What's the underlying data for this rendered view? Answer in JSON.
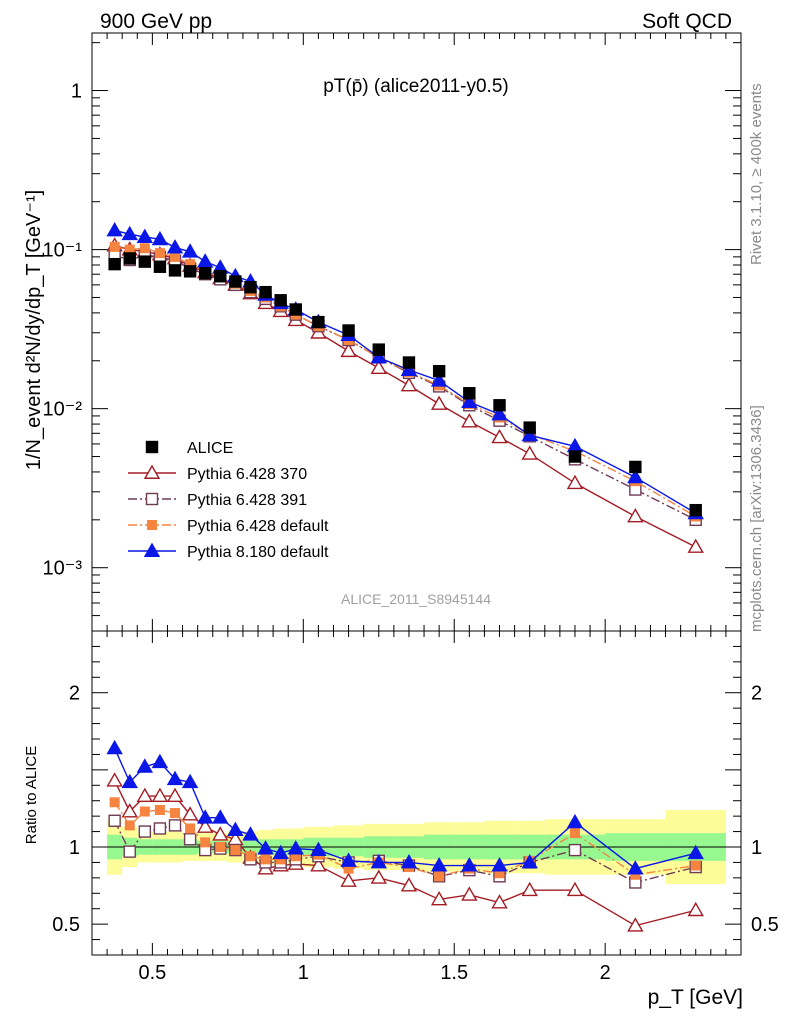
{
  "header": {
    "left": "900 GeV pp",
    "right": "Soft QCD"
  },
  "side": {
    "rivet": "Rivet 3.1.10, ≥ 400k events",
    "mcplots": "mcplots.cern.ch [arXiv:1306.3436]"
  },
  "chart_data": [
    {
      "type": "scatter",
      "title": "pT(p̄) (alice2011-y0.5)",
      "ylabel": "1/N_event d²N/dy/dp_T [GeV⁻¹]",
      "yscale": "log",
      "ylim": [
        0.0004,
        2.3
      ],
      "xlim": [
        0.3,
        2.45
      ],
      "yticks": [
        {
          "v": 1,
          "label": "1"
        },
        {
          "v": 0.1,
          "label": "10⁻¹"
        },
        {
          "v": 0.01,
          "label": "10⁻²"
        },
        {
          "v": 0.001,
          "label": "10⁻³"
        }
      ],
      "watermark": "ALICE_2011_S8945144",
      "legend_position": "lower-left",
      "x": [
        0.375,
        0.425,
        0.475,
        0.525,
        0.575,
        0.625,
        0.675,
        0.725,
        0.775,
        0.825,
        0.875,
        0.925,
        0.975,
        1.05,
        1.15,
        1.25,
        1.35,
        1.45,
        1.55,
        1.65,
        1.75,
        1.9,
        2.1,
        2.3
      ],
      "series": [
        {
          "name": "ALICE",
          "values": [
            0.081,
            0.088,
            0.084,
            0.078,
            0.074,
            0.073,
            0.071,
            0.068,
            0.063,
            0.058,
            0.054,
            0.048,
            0.042,
            0.035,
            0.031,
            0.0235,
            0.0195,
            0.0172,
            0.0125,
            0.0105,
            0.0076,
            0.005,
            0.0043,
            0.0023
          ]
        },
        {
          "name": "Pythia 6.428 370",
          "values": [
            0.106,
            0.1,
            0.097,
            0.093,
            0.088,
            0.079,
            0.072,
            0.066,
            0.06,
            0.053,
            0.046,
            0.041,
            0.036,
            0.03,
            0.023,
            0.018,
            0.014,
            0.0107,
            0.0083,
            0.0066,
            0.0052,
            0.0034,
            0.0021,
            0.00135
          ]
        },
        {
          "name": "Pythia 6.428 391",
          "values": [
            0.092,
            0.086,
            0.092,
            0.09,
            0.085,
            0.076,
            0.07,
            0.065,
            0.06,
            0.054,
            0.049,
            0.044,
            0.039,
            0.033,
            0.027,
            0.021,
            0.0168,
            0.0138,
            0.0105,
            0.0084,
            0.0067,
            0.0048,
            0.0031,
            0.002
          ]
        },
        {
          "name": "Pythia 6.428 default",
          "values": [
            0.104,
            0.1,
            0.102,
            0.095,
            0.09,
            0.081,
            0.073,
            0.067,
            0.061,
            0.055,
            0.05,
            0.044,
            0.039,
            0.033,
            0.027,
            0.021,
            0.017,
            0.014,
            0.0107,
            0.0088,
            0.0069,
            0.0054,
            0.0035,
            0.0021
          ]
        },
        {
          "name": "Pythia 8.180 default",
          "values": [
            0.132,
            0.125,
            0.12,
            0.116,
            0.103,
            0.097,
            0.084,
            0.077,
            0.068,
            0.063,
            0.052,
            0.046,
            0.042,
            0.035,
            0.029,
            0.021,
            0.0175,
            0.015,
            0.011,
            0.0092,
            0.0068,
            0.0058,
            0.0037,
            0.0022
          ]
        }
      ]
    },
    {
      "type": "scatter",
      "ylabel": "Ratio to ALICE",
      "xlabel": "p_T [GeV]",
      "ylim": [
        0.3,
        2.4
      ],
      "xlim": [
        0.3,
        2.45
      ],
      "xticks": [
        {
          "v": 0.5,
          "label": "0.5"
        },
        {
          "v": 1,
          "label": "1"
        },
        {
          "v": 1.5,
          "label": "1.5"
        },
        {
          "v": 2,
          "label": "2"
        }
      ],
      "yticks": [
        {
          "v": 0.5,
          "label": "0.5"
        },
        {
          "v": 1,
          "label": "1"
        },
        {
          "v": 2,
          "label": "2"
        }
      ],
      "bins": [
        [
          0.35,
          0.4
        ],
        [
          0.4,
          0.45
        ],
        [
          0.45,
          0.5
        ],
        [
          0.5,
          0.55
        ],
        [
          0.55,
          0.6
        ],
        [
          0.6,
          0.65
        ],
        [
          0.65,
          0.7
        ],
        [
          0.7,
          0.75
        ],
        [
          0.75,
          0.8
        ],
        [
          0.8,
          0.85
        ],
        [
          0.85,
          0.9
        ],
        [
          0.9,
          0.95
        ],
        [
          0.95,
          1.0
        ],
        [
          1.0,
          1.1
        ],
        [
          1.1,
          1.2
        ],
        [
          1.2,
          1.3
        ],
        [
          1.3,
          1.4
        ],
        [
          1.4,
          1.5
        ],
        [
          1.5,
          1.6
        ],
        [
          1.6,
          1.7
        ],
        [
          1.7,
          1.8
        ],
        [
          1.8,
          2.0
        ],
        [
          2.0,
          2.2
        ],
        [
          2.2,
          2.4
        ]
      ],
      "stat_band": [
        0.08,
        0.06,
        0.05,
        0.05,
        0.05,
        0.05,
        0.04,
        0.04,
        0.04,
        0.04,
        0.05,
        0.05,
        0.05,
        0.06,
        0.06,
        0.07,
        0.07,
        0.08,
        0.08,
        0.08,
        0.08,
        0.08,
        0.09,
        0.09
      ],
      "total_band": [
        0.18,
        0.13,
        0.1,
        0.1,
        0.1,
        0.09,
        0.09,
        0.09,
        0.1,
        0.1,
        0.11,
        0.12,
        0.12,
        0.13,
        0.14,
        0.15,
        0.15,
        0.16,
        0.16,
        0.17,
        0.17,
        0.18,
        0.18,
        0.24
      ],
      "x": [
        0.375,
        0.425,
        0.475,
        0.525,
        0.575,
        0.625,
        0.675,
        0.725,
        0.775,
        0.825,
        0.875,
        0.925,
        0.975,
        1.05,
        1.15,
        1.25,
        1.35,
        1.45,
        1.55,
        1.65,
        1.75,
        1.9,
        2.1,
        2.3
      ],
      "series": [
        {
          "name": "Pythia 6.428 370",
          "values": [
            1.43,
            1.23,
            1.33,
            1.33,
            1.33,
            1.21,
            1.13,
            1.08,
            1.05,
            0.93,
            0.86,
            0.88,
            0.89,
            0.88,
            0.78,
            0.8,
            0.75,
            0.66,
            0.69,
            0.64,
            0.72,
            0.72,
            0.49,
            0.59
          ]
        },
        {
          "name": "Pythia 6.428 391",
          "values": [
            1.17,
            0.97,
            1.1,
            1.12,
            1.14,
            1.05,
            0.98,
            0.99,
            0.98,
            0.92,
            0.9,
            0.9,
            0.92,
            0.94,
            0.9,
            0.91,
            0.88,
            0.81,
            0.85,
            0.81,
            0.9,
            0.98,
            0.77,
            0.87
          ]
        },
        {
          "name": "Pythia 6.428 default",
          "values": [
            1.29,
            1.14,
            1.23,
            1.24,
            1.22,
            1.12,
            1.03,
            1.0,
            0.98,
            0.94,
            0.92,
            0.92,
            0.94,
            0.95,
            0.86,
            0.9,
            0.87,
            0.81,
            0.86,
            0.83,
            0.91,
            1.09,
            0.82,
            0.88
          ]
        },
        {
          "name": "Pythia 8.180 default",
          "values": [
            1.64,
            1.42,
            1.52,
            1.55,
            1.44,
            1.42,
            1.19,
            1.19,
            1.11,
            1.08,
            0.99,
            0.96,
            0.99,
            0.98,
            0.91,
            0.9,
            0.9,
            0.88,
            0.88,
            0.88,
            0.9,
            1.16,
            0.86,
            0.96
          ]
        }
      ]
    }
  ],
  "colors": {
    "ALICE": "#000000",
    "Pythia 6.428 370": "#a31c24",
    "Pythia 6.428 391": "#6e3b55",
    "Pythia 6.428 default": "#f58440",
    "Pythia 8.180 default": "#0a17e6",
    "stat_band": "#98f890",
    "total_band": "#fcfc98"
  }
}
